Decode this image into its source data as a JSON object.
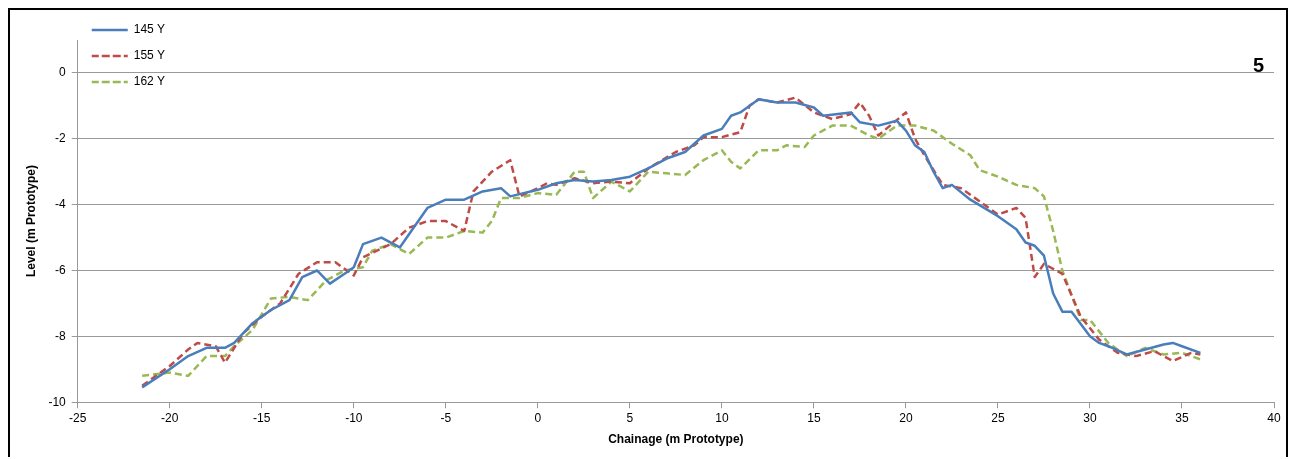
{
  "chart_data": {
    "type": "line",
    "xlabel": "Chainage (m Prototype)",
    "ylabel": "Level (m Prototype)",
    "annotations": [
      "5"
    ],
    "xlim": [
      -25,
      40
    ],
    "xticks": [
      -25,
      -20,
      -15,
      -10,
      -5,
      0,
      5,
      10,
      15,
      20,
      25,
      30,
      35,
      40
    ],
    "ylim": [
      -10,
      1
    ],
    "yticks": [
      -10,
      -8,
      -6,
      -4,
      -2,
      0
    ],
    "grid": "y",
    "legend": "top left",
    "marker": "none",
    "series": [
      {
        "name": "145 Y",
        "color": "#4a7ebb",
        "line_style": "solid",
        "x": [
          -21.5,
          -20,
          -19,
          -18,
          -17,
          -16.5,
          -15.5,
          -14.5,
          -13.5,
          -12.8,
          -12,
          -11.3,
          -10.5,
          -10,
          -9.5,
          -8.5,
          -7.5,
          -7,
          -6,
          -5,
          -4,
          -3,
          -2,
          -1.5,
          0,
          1,
          2,
          3,
          4,
          5,
          6,
          7,
          8,
          9,
          10,
          10.5,
          11,
          12,
          13,
          14,
          15,
          15.5,
          17,
          17.5,
          18.5,
          19.5,
          20,
          20.5,
          21,
          21.5,
          22,
          22.5,
          23.5,
          25,
          26,
          26.5,
          27,
          27.5,
          28,
          28.5,
          29,
          30,
          30.5,
          31,
          32,
          33,
          34,
          34.5,
          35,
          36
        ],
        "values": [
          -9.55,
          -9.0,
          -8.6,
          -8.35,
          -8.35,
          -8.2,
          -7.6,
          -7.2,
          -6.9,
          -6.2,
          -6.0,
          -6.4,
          -6.1,
          -5.9,
          -5.2,
          -5.0,
          -5.3,
          -4.9,
          -4.1,
          -3.85,
          -3.85,
          -3.6,
          -3.5,
          -3.75,
          -3.55,
          -3.35,
          -3.25,
          -3.3,
          -3.25,
          -3.15,
          -2.9,
          -2.6,
          -2.4,
          -1.9,
          -1.7,
          -1.3,
          -1.2,
          -0.8,
          -0.9,
          -0.9,
          -1.05,
          -1.3,
          -1.2,
          -1.5,
          -1.6,
          -1.45,
          -1.75,
          -2.2,
          -2.4,
          -3.0,
          -3.5,
          -3.4,
          -3.85,
          -4.35,
          -4.75,
          -5.15,
          -5.25,
          -5.55,
          -6.7,
          -7.25,
          -7.25,
          -8.0,
          -8.2,
          -8.3,
          -8.55,
          -8.4,
          -8.25,
          -8.2,
          -8.3,
          -8.5
        ]
      },
      {
        "name": "155 Y",
        "color": "#be4b48",
        "line_style": "dashed",
        "x": [
          -21.5,
          -20,
          -19,
          -18.5,
          -17.5,
          -17,
          -16,
          -15,
          -14,
          -13,
          -12,
          -11,
          -10,
          -9.5,
          -8,
          -7,
          -6,
          -5,
          -4,
          -3.5,
          -2.5,
          -1.5,
          -1,
          0,
          0.5,
          1,
          2,
          3,
          4,
          5,
          6,
          7.5,
          8.5,
          9,
          10,
          11,
          11.5,
          12,
          13,
          14,
          15,
          16,
          17,
          17.5,
          18,
          18.5,
          20,
          20.5,
          21,
          22,
          23,
          24,
          25,
          26,
          26.5,
          27,
          27.5,
          28.5,
          29.5,
          30.5,
          31.5,
          32.5,
          33.5,
          34.5,
          35.5,
          36
        ],
        "values": [
          -9.5,
          -8.9,
          -8.4,
          -8.2,
          -8.3,
          -8.8,
          -7.9,
          -7.4,
          -7.0,
          -6.1,
          -5.75,
          -5.75,
          -6.15,
          -5.6,
          -5.2,
          -4.7,
          -4.5,
          -4.5,
          -4.8,
          -3.6,
          -3.0,
          -2.65,
          -3.75,
          -3.5,
          -3.35,
          -3.4,
          -3.2,
          -3.35,
          -3.3,
          -3.35,
          -2.9,
          -2.4,
          -2.2,
          -1.95,
          -1.95,
          -1.8,
          -1.0,
          -0.8,
          -0.9,
          -0.75,
          -1.2,
          -1.4,
          -1.25,
          -0.9,
          -1.3,
          -1.9,
          -1.2,
          -2.0,
          -2.5,
          -3.4,
          -3.5,
          -3.9,
          -4.3,
          -4.1,
          -4.4,
          -6.2,
          -5.8,
          -6.1,
          -7.4,
          -8.1,
          -8.5,
          -8.6,
          -8.45,
          -8.75,
          -8.5,
          -8.55
        ]
      },
      {
        "name": "162 Y",
        "color": "#98b954",
        "line_style": "dashed",
        "x": [
          -21.5,
          -20,
          -19,
          -18,
          -17,
          -16.5,
          -15.5,
          -14.5,
          -13.5,
          -12.5,
          -11.5,
          -10.5,
          -9.5,
          -9,
          -8,
          -7,
          -6,
          -5,
          -4,
          -3,
          -2.5,
          -2,
          -1,
          0,
          1,
          2,
          2.5,
          3,
          4,
          5,
          6,
          7,
          8,
          9,
          10,
          10.5,
          11,
          12,
          13,
          13.5,
          14.5,
          15,
          16,
          17,
          18,
          18.5,
          19.5,
          20.5,
          21.5,
          22.5,
          23.5,
          24,
          25,
          26,
          27,
          27.5,
          28,
          28.5,
          29.5,
          30,
          31,
          32,
          33,
          34,
          35,
          36
        ],
        "values": [
          -9.2,
          -9.1,
          -9.2,
          -8.6,
          -8.6,
          -8.3,
          -7.8,
          -6.85,
          -6.8,
          -6.9,
          -6.3,
          -6.0,
          -5.9,
          -5.4,
          -5.2,
          -5.5,
          -5.0,
          -5.0,
          -4.8,
          -4.85,
          -4.5,
          -3.8,
          -3.8,
          -3.65,
          -3.7,
          -3.0,
          -3.0,
          -3.8,
          -3.3,
          -3.6,
          -3.0,
          -3.05,
          -3.1,
          -2.65,
          -2.35,
          -2.7,
          -2.9,
          -2.35,
          -2.35,
          -2.2,
          -2.25,
          -1.9,
          -1.6,
          -1.6,
          -1.9,
          -2.0,
          -1.6,
          -1.6,
          -1.75,
          -2.15,
          -2.5,
          -2.95,
          -3.15,
          -3.4,
          -3.5,
          -3.75,
          -4.8,
          -6.0,
          -7.5,
          -7.5,
          -8.2,
          -8.6,
          -8.35,
          -8.55,
          -8.5,
          -8.7
        ]
      }
    ]
  }
}
